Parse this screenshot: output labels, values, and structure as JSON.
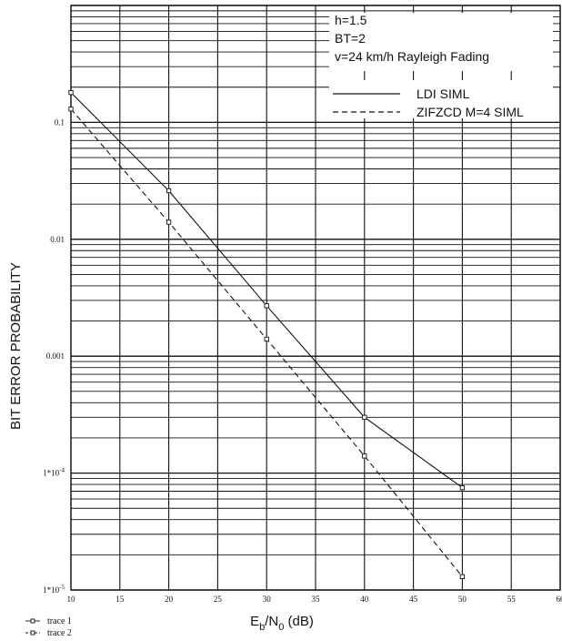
{
  "chart_data": {
    "type": "line",
    "y_scale": "log",
    "xlim": [
      10,
      60
    ],
    "ylim": [
      1e-05,
      1
    ],
    "x_ticks": [
      10,
      15,
      20,
      25,
      30,
      35,
      40,
      45,
      50,
      55,
      60
    ],
    "x_tick_labels": [
      "10",
      "15",
      "20",
      "25",
      "30",
      "35",
      "40",
      "45",
      "50",
      "55",
      "60"
    ],
    "y_ticks": [
      1e-05,
      0.0001,
      0.001,
      0.01,
      0.1
    ],
    "y_tick_labels": [
      "1*10",
      "1*10",
      "0.001",
      "0.01",
      "0.1"
    ],
    "y_tick_exponents": [
      "-5",
      "-4",
      "",
      "",
      ""
    ],
    "ylabel": "BIT ERROR PROBABILITY",
    "xlabel": {
      "base": "E",
      "sub1": "b",
      "mid": "/N",
      "sub2": "0",
      "unit": " (dB)"
    },
    "grid": true,
    "annotations": [
      "h=1.5",
      "BT=2",
      "v=24 km/h Rayleigh Fading"
    ],
    "legend": {
      "placement": "top-right",
      "entries": [
        {
          "label": "LDI SIML",
          "style": "solid"
        },
        {
          "label": "ZIFZCD M=4 SIML",
          "style": "dashed"
        }
      ]
    },
    "marker_legend": {
      "placement": "bottom-left",
      "entries": [
        "trace 1",
        "trace 2"
      ]
    },
    "series": [
      {
        "style": "solid",
        "x": [
          9.5,
          20,
          30,
          40,
          50
        ],
        "y": [
          0.18,
          0.026,
          0.0027,
          0.0003,
          7.5e-05
        ]
      },
      {
        "style": "dashed",
        "x": [
          9.5,
          20,
          30,
          40,
          50
        ],
        "y": [
          0.13,
          0.014,
          0.0014,
          0.00014,
          1.3e-05
        ]
      }
    ]
  }
}
